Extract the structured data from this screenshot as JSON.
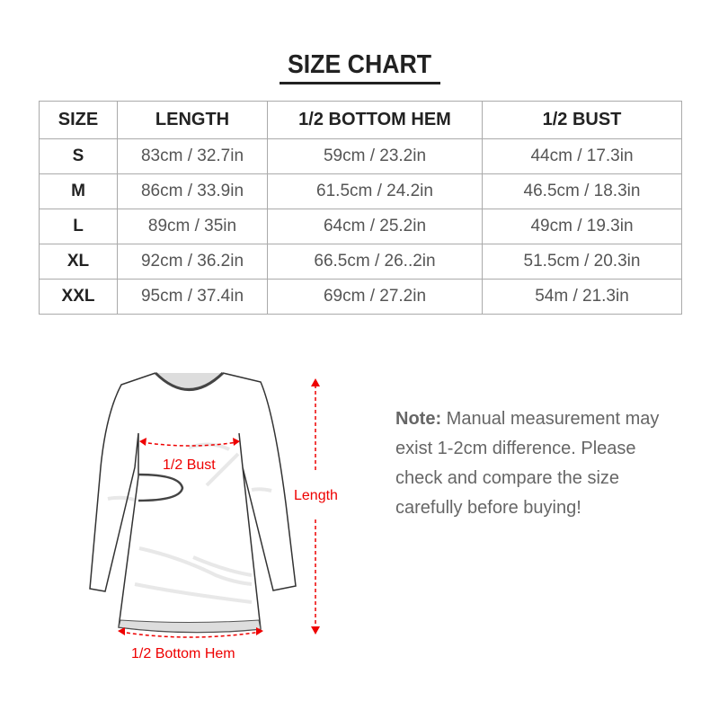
{
  "title": "SIZE CHART",
  "table": {
    "headers": [
      "SIZE",
      "LENGTH",
      "1/2 BOTTOM HEM",
      "1/2 BUST"
    ],
    "rows": [
      [
        "S",
        "83cm / 32.7in",
        "59cm / 23.2in",
        "44cm / 17.3in"
      ],
      [
        "M",
        "86cm / 33.9in",
        "61.5cm / 24.2in",
        "46.5cm / 18.3in"
      ],
      [
        "L",
        "89cm / 35in",
        "64cm / 25.2in",
        "49cm / 19.3in"
      ],
      [
        "XL",
        "92cm / 36.2in",
        "66.5cm / 26..2in",
        "51.5cm / 20.3in"
      ],
      [
        "XXL",
        "95cm / 37.4in",
        "69cm / 27.2in",
        "54m / 21.3in"
      ]
    ]
  },
  "diagram": {
    "bust_label": "1/2 Bust",
    "length_label": "Length",
    "hem_label": "1/2 Bottom Hem",
    "accent_color": "#e00000"
  },
  "note": {
    "label": "Note:",
    "text": " Manual measurement may exist 1-2cm difference. Please check and compare the size carefully before buying!"
  }
}
